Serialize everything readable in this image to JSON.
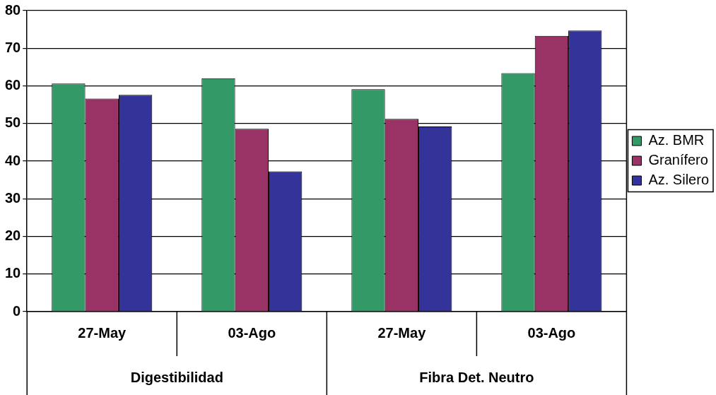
{
  "chart_data": {
    "type": "bar",
    "categories": [
      "27-May",
      "03-Ago",
      "27-May",
      "03-Ago"
    ],
    "series": [
      {
        "name": "Az. BMR",
        "color": "#339966",
        "values": [
          60.6,
          62.0,
          59.1,
          63.4
        ]
      },
      {
        "name": "Granífero",
        "color": "#993366",
        "values": [
          56.6,
          48.6,
          51.2,
          73.3
        ]
      },
      {
        "name": "Az. Silero",
        "color": "#333399",
        "values": [
          57.6,
          37.3,
          49.2,
          74.7
        ]
      }
    ],
    "annotations": [
      "Digestibilidad",
      "Fibra Det. Neutro"
    ],
    "ylim": [
      0,
      80
    ],
    "yticks": [
      0,
      10,
      20,
      30,
      40,
      50,
      60,
      70,
      80
    ],
    "grid": "y",
    "legend": "right"
  }
}
